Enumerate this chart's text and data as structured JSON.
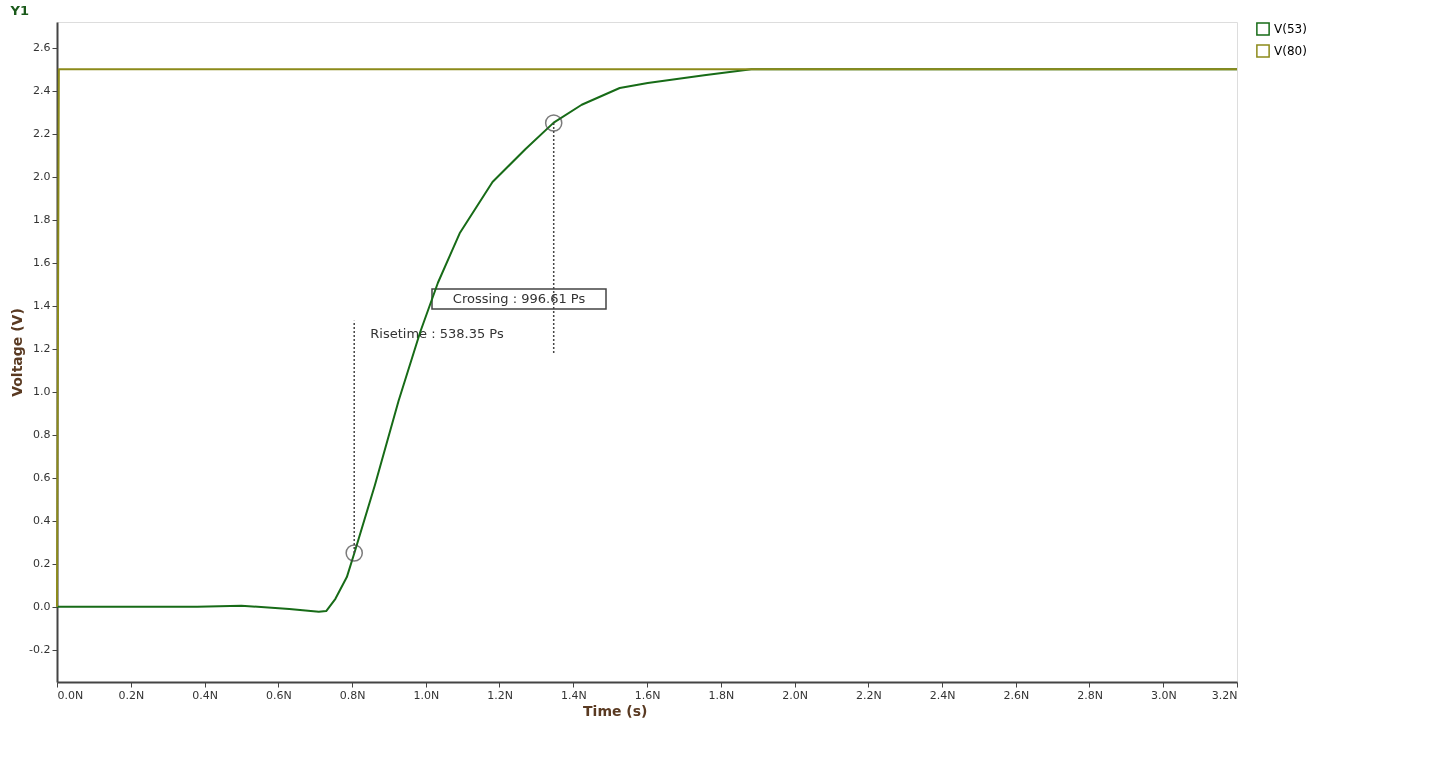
{
  "chart_data": {
    "type": "line",
    "title": "Y1",
    "xlabel": "Time (s)",
    "ylabel": "Voltage (V)",
    "xlim": [
      0,
      3.2
    ],
    "ylim": [
      -0.35,
      2.72
    ],
    "xticks": [
      {
        "value": 0,
        "label": "0.0N"
      },
      {
        "value": 0.2,
        "label": "0.2N"
      },
      {
        "value": 0.4,
        "label": "0.4N"
      },
      {
        "value": 0.6,
        "label": "0.6N"
      },
      {
        "value": 0.8,
        "label": "0.8N"
      },
      {
        "value": 1.0,
        "label": "1.0N"
      },
      {
        "value": 1.2,
        "label": "1.2N"
      },
      {
        "value": 1.4,
        "label": "1.4N"
      },
      {
        "value": 1.6,
        "label": "1.6N"
      },
      {
        "value": 1.8,
        "label": "1.8N"
      },
      {
        "value": 2.0,
        "label": "2.0N"
      },
      {
        "value": 2.2,
        "label": "2.2N"
      },
      {
        "value": 2.4,
        "label": "2.4N"
      },
      {
        "value": 2.6,
        "label": "2.6N"
      },
      {
        "value": 2.8,
        "label": "2.8N"
      },
      {
        "value": 3.0,
        "label": "3.0N"
      },
      {
        "value": 3.2,
        "label": "3.2N"
      }
    ],
    "yticks": [
      {
        "value": -0.2,
        "label": "-0.2"
      },
      {
        "value": 0,
        "label": "0.0"
      },
      {
        "value": 0.2,
        "label": "0.2"
      },
      {
        "value": 0.4,
        "label": "0.4"
      },
      {
        "value": 0.6,
        "label": "0.6"
      },
      {
        "value": 0.8,
        "label": "0.8"
      },
      {
        "value": 1.0,
        "label": "1.0"
      },
      {
        "value": 1.2,
        "label": "1.2"
      },
      {
        "value": 1.4,
        "label": "1.4"
      },
      {
        "value": 1.6,
        "label": "1.6"
      },
      {
        "value": 1.8,
        "label": "1.8"
      },
      {
        "value": 2.0,
        "label": "2.0"
      },
      {
        "value": 2.2,
        "label": "2.2"
      },
      {
        "value": 2.4,
        "label": "2.4"
      },
      {
        "value": 2.6,
        "label": "2.6"
      }
    ],
    "grid": false,
    "legend": "top right",
    "marker": "none",
    "line_style": "solid",
    "series": [
      {
        "name": "V(53)",
        "color": "#176b17",
        "x": [
          0,
          0.38,
          0.5,
          0.63,
          0.71,
          0.73,
          0.755,
          0.786,
          0.806,
          0.862,
          0.926,
          0.985,
          1.033,
          1.092,
          1.181,
          1.27,
          1.347,
          1.423,
          1.526,
          1.602,
          1.755,
          1.883,
          3.2
        ],
        "values": [
          0,
          0,
          0.005,
          -0.01,
          -0.023,
          -0.02,
          0.037,
          0.138,
          0.248,
          0.565,
          0.956,
          1.278,
          1.507,
          1.737,
          1.976,
          2.128,
          2.252,
          2.335,
          2.413,
          2.436,
          2.472,
          2.5,
          2.5
        ]
      },
      {
        "name": "V(80)",
        "color": "#8c8a1a",
        "x": [
          0,
          0.005,
          3.2
        ],
        "values": [
          0,
          2.5,
          2.5
        ]
      },
      {
        "type": "scatter",
        "marker": "circle",
        "color": "#444444",
        "x": [
          0.806,
          1.347
        ],
        "values": [
          0.25,
          2.25
        ]
      },
      {
        "line_style": "dotted",
        "color": "#444444",
        "x": [
          0.806,
          0.806
        ],
        "values": [
          0.25,
          1.33
        ]
      },
      {
        "line_style": "dotted",
        "color": "#444444",
        "x": [
          1.347,
          1.347
        ],
        "values": [
          2.25,
          1.18
        ]
      }
    ],
    "annotations": [
      "Crossing : 996.61 Ps",
      "Risetime : 538.35 Ps"
    ]
  }
}
